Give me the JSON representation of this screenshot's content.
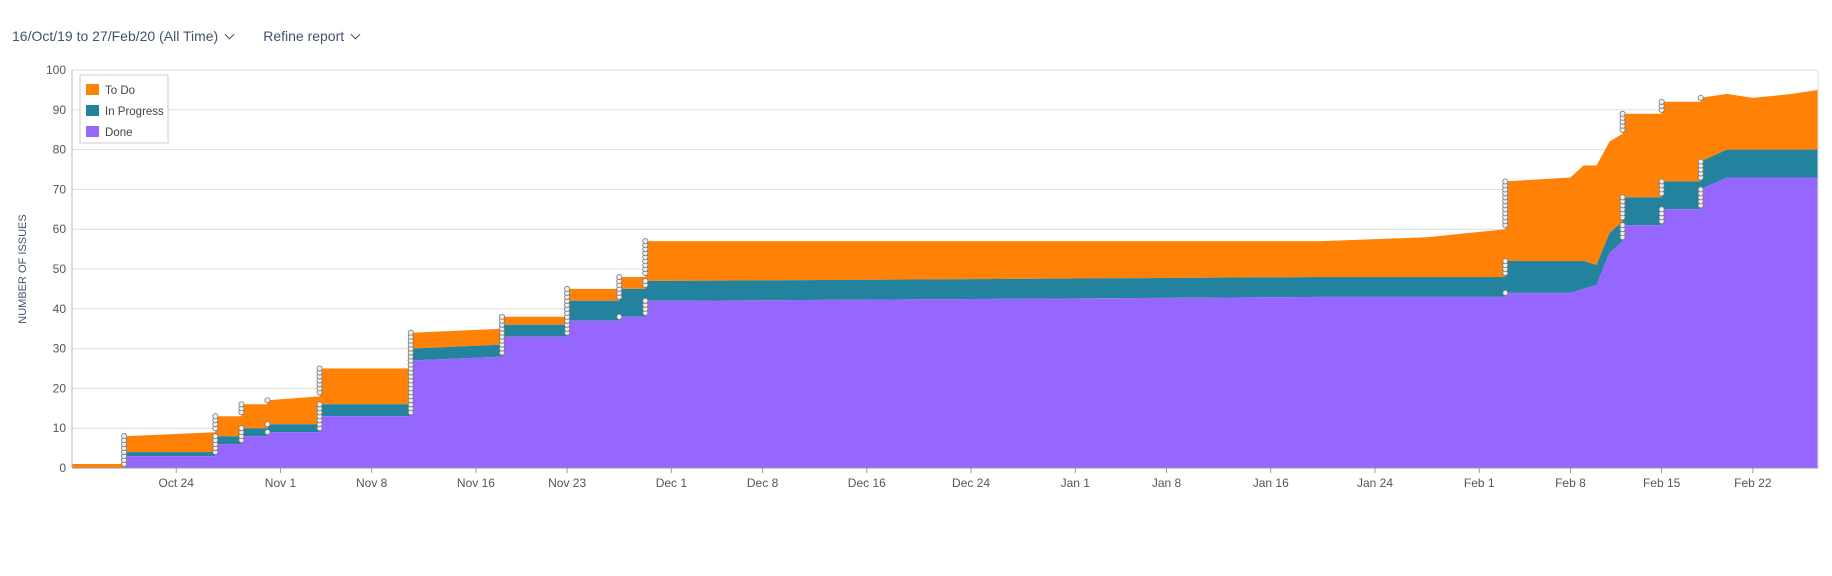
{
  "toolbar": {
    "date_range_label": "16/Oct/19 to 27/Feb/20 (All Time)",
    "refine_label": "Refine report"
  },
  "chart_data": {
    "type": "area",
    "stacked": true,
    "ylabel": "NUMBER OF ISSUES",
    "ylim": [
      0,
      100
    ],
    "yticks": [
      0,
      10,
      20,
      30,
      40,
      50,
      60,
      70,
      80,
      90,
      100
    ],
    "xlim": [
      "2019-10-16",
      "2020-02-27"
    ],
    "xticks": [
      {
        "date": "2019-10-24",
        "label": "Oct 24"
      },
      {
        "date": "2019-11-01",
        "label": "Nov 1"
      },
      {
        "date": "2019-11-08",
        "label": "Nov 8"
      },
      {
        "date": "2019-11-16",
        "label": "Nov 16"
      },
      {
        "date": "2019-11-23",
        "label": "Nov 23"
      },
      {
        "date": "2019-12-01",
        "label": "Dec 1"
      },
      {
        "date": "2019-12-08",
        "label": "Dec 8"
      },
      {
        "date": "2019-12-16",
        "label": "Dec 16"
      },
      {
        "date": "2019-12-24",
        "label": "Dec 24"
      },
      {
        "date": "2020-01-01",
        "label": "Jan 1"
      },
      {
        "date": "2020-01-08",
        "label": "Jan 8"
      },
      {
        "date": "2020-01-16",
        "label": "Jan 16"
      },
      {
        "date": "2020-01-24",
        "label": "Jan 24"
      },
      {
        "date": "2020-02-01",
        "label": "Feb 1"
      },
      {
        "date": "2020-02-08",
        "label": "Feb 8"
      },
      {
        "date": "2020-02-15",
        "label": "Feb 15"
      },
      {
        "date": "2020-02-22",
        "label": "Feb 22"
      }
    ],
    "legend_position": "top-left",
    "grid": true,
    "series": [
      {
        "name": "To Do",
        "color": "#ff8206"
      },
      {
        "name": "In Progress",
        "color": "#23839e"
      },
      {
        "name": "Done",
        "color": "#9567ff"
      }
    ],
    "x": [
      "2019-10-16",
      "2019-10-20",
      "2019-10-20",
      "2019-10-27",
      "2019-10-27",
      "2019-10-29",
      "2019-10-29",
      "2019-10-31",
      "2019-10-31",
      "2019-11-04",
      "2019-11-04",
      "2019-11-11",
      "2019-11-11",
      "2019-11-18",
      "2019-11-18",
      "2019-11-21",
      "2019-11-21",
      "2019-11-23",
      "2019-11-23",
      "2019-11-27",
      "2019-11-27",
      "2019-11-29",
      "2019-11-29",
      "2019-12-01",
      "2020-01-20",
      "2020-01-28",
      "2020-02-03",
      "2020-02-03",
      "2020-02-08",
      "2020-02-09",
      "2020-02-10",
      "2020-02-10",
      "2020-02-11",
      "2020-02-12",
      "2020-02-12",
      "2020-02-15",
      "2020-02-15",
      "2020-02-18",
      "2020-02-18",
      "2020-02-20",
      "2020-02-22",
      "2020-02-25",
      "2020-02-27"
    ],
    "done": [
      0,
      0,
      3,
      3,
      6,
      6,
      8,
      8,
      9,
      9,
      13,
      13,
      27,
      28,
      33,
      33,
      33,
      33,
      37,
      37,
      38,
      38,
      42,
      42,
      43,
      43,
      43,
      44,
      44,
      45,
      46,
      46,
      54,
      57,
      61,
      61,
      65,
      65,
      70,
      73,
      73,
      73,
      73
    ],
    "in_progress": [
      0,
      0,
      1,
      1,
      2,
      2,
      2,
      2,
      2,
      2,
      3,
      3,
      3,
      3,
      3,
      3,
      3,
      3,
      5,
      5,
      7,
      7,
      5,
      5,
      5,
      5,
      5,
      8,
      8,
      7,
      5,
      5,
      5,
      5,
      7,
      7,
      7,
      7,
      7,
      7,
      7,
      7,
      7
    ],
    "todo": [
      1,
      1,
      4,
      5,
      5,
      5,
      6,
      6,
      6,
      7,
      9,
      9,
      4,
      4,
      2,
      2,
      2,
      2,
      3,
      3,
      3,
      3,
      10,
      10,
      9,
      10,
      12,
      20,
      21,
      24,
      25,
      25,
      23,
      22,
      21,
      21,
      20,
      20,
      16,
      14,
      13,
      14,
      15
    ]
  }
}
